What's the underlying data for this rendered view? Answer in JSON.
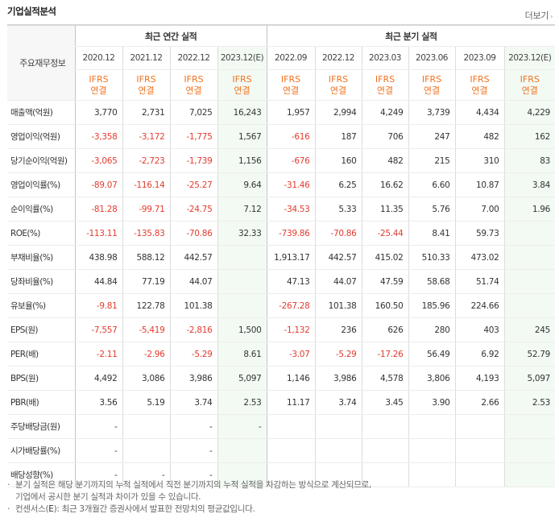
{
  "header": {
    "title": "기업실적분석",
    "more_label": "더보기",
    "more_arrow": "›"
  },
  "table": {
    "row_label_header": "주요재무정보",
    "groups": {
      "annual": "최근 연간 실적",
      "quarter": "최근 분기 실적"
    },
    "periods": [
      "2020.12",
      "2021.12",
      "2022.12",
      "2023.12(E)",
      "2022.09",
      "2022.12",
      "2023.03",
      "2023.06",
      "2023.09",
      "2023.12(E)"
    ],
    "standard": {
      "line1": "IFRS",
      "line2": "연결"
    },
    "rows": [
      {
        "label": "매출액(억원)",
        "values": [
          "3,770",
          "2,731",
          "7,025",
          "16,243",
          "1,957",
          "2,994",
          "4,249",
          "3,739",
          "4,434",
          "4,229"
        ]
      },
      {
        "label": "영업이익(억원)",
        "values": [
          "-3,358",
          "-3,172",
          "-1,775",
          "1,567",
          "-616",
          "187",
          "706",
          "247",
          "482",
          "162"
        ]
      },
      {
        "label": "당기순이익(억원)",
        "values": [
          "-3,065",
          "-2,723",
          "-1,739",
          "1,156",
          "-676",
          "160",
          "482",
          "215",
          "310",
          "83"
        ]
      },
      {
        "label": "영업이익률(%)",
        "values": [
          "-89.07",
          "-116.14",
          "-25.27",
          "9.64",
          "-31.46",
          "6.25",
          "16.62",
          "6.60",
          "10.87",
          "3.84"
        ]
      },
      {
        "label": "순이익률(%)",
        "values": [
          "-81.28",
          "-99.71",
          "-24.75",
          "7.12",
          "-34.53",
          "5.33",
          "11.35",
          "5.76",
          "7.00",
          "1.96"
        ]
      },
      {
        "label": "ROE(%)",
        "values": [
          "-113.11",
          "-135.83",
          "-70.86",
          "32.33",
          "-739.86",
          "-70.86",
          "-25.44",
          "8.41",
          "59.73",
          ""
        ]
      },
      {
        "label": "부채비율(%)",
        "values": [
          "438.98",
          "588.12",
          "442.57",
          "",
          "1,913.17",
          "442.57",
          "415.02",
          "510.33",
          "473.02",
          ""
        ]
      },
      {
        "label": "당좌비율(%)",
        "values": [
          "44.84",
          "77.19",
          "44.07",
          "",
          "47.13",
          "44.07",
          "47.59",
          "58.68",
          "51.74",
          ""
        ]
      },
      {
        "label": "유보율(%)",
        "values": [
          "-9.81",
          "122.78",
          "101.38",
          "",
          "-267.28",
          "101.38",
          "160.50",
          "185.96",
          "224.66",
          ""
        ]
      },
      {
        "label": "EPS(원)",
        "values": [
          "-7,557",
          "-5,419",
          "-2,816",
          "1,500",
          "-1,132",
          "236",
          "626",
          "280",
          "403",
          "245"
        ]
      },
      {
        "label": "PER(배)",
        "values": [
          "-2.11",
          "-2.96",
          "-5.29",
          "8.61",
          "-3.07",
          "-5.29",
          "-17.26",
          "56.49",
          "6.92",
          "52.79"
        ]
      },
      {
        "label": "BPS(원)",
        "values": [
          "4,492",
          "3,086",
          "3,986",
          "5,097",
          "1,146",
          "3,986",
          "4,578",
          "3,806",
          "4,193",
          "5,097"
        ]
      },
      {
        "label": "PBR(배)",
        "values": [
          "3.56",
          "5.19",
          "3.74",
          "2.53",
          "11.17",
          "3.74",
          "3.45",
          "3.90",
          "2.66",
          "2.53"
        ]
      },
      {
        "label": "주당배당금(원)",
        "values": [
          "-",
          "",
          "-",
          "-",
          "",
          "",
          "",
          "",
          "",
          ""
        ]
      },
      {
        "label": "시가배당률(%)",
        "values": [
          "-",
          "",
          "-",
          "",
          "",
          "",
          "",
          "",
          "",
          ""
        ]
      },
      {
        "label": "배당성향(%)",
        "values": [
          "-",
          "-",
          "-",
          "",
          "",
          "",
          "",
          "",
          "",
          ""
        ]
      }
    ]
  },
  "notes": {
    "bullet": "·",
    "line1": "분기 실적은 해당 분기까지의 누적 실적에서 직전 분기까지의 누적 실적을 차감하는 방식으로 계산되므로,",
    "line2": "기업에서 공시한 분기 실적과 차이가 있을 수 있습니다.",
    "line3_pre": "컨센서스(",
    "line3_e": "E",
    "line3_post": "): 최근 3개월간 증권사에서 발표한 전망치의 평균값입니다."
  },
  "colors": {
    "negative": "#e33b2e",
    "ifrs": "#f07320",
    "estimate_bg": "#f3faf3",
    "header_bg": "#f7f7f7"
  }
}
